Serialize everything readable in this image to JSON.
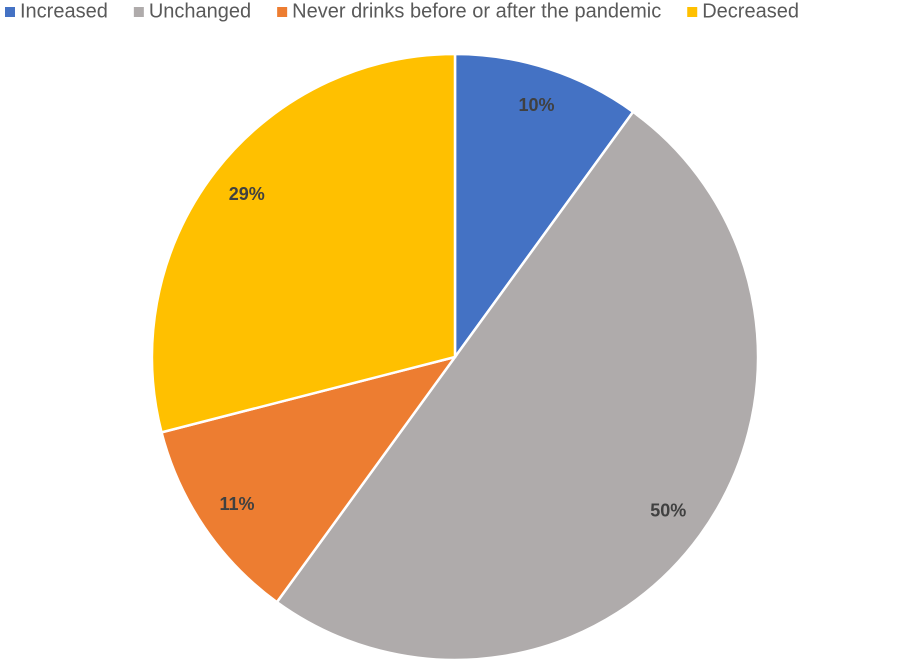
{
  "chart_data": {
    "type": "pie",
    "categories": [
      "Increased",
      "Unchanged",
      "Never drinks before or after the pandemic",
      "Decreased"
    ],
    "values": [
      10,
      50,
      11,
      29
    ],
    "value_labels": [
      "10%",
      "50%",
      "11%",
      "29%"
    ],
    "colors": [
      "#4472c4",
      "#afabab",
      "#ed7d31",
      "#ffc000"
    ],
    "legend": "top"
  }
}
